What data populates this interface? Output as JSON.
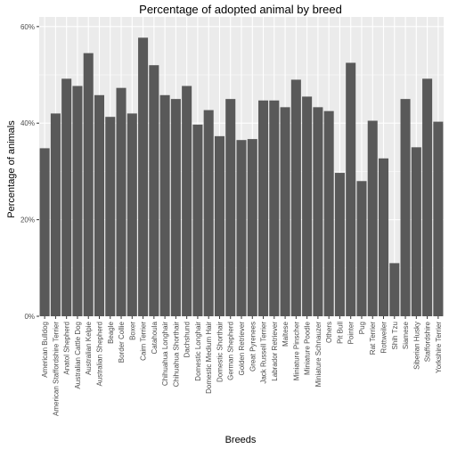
{
  "chart_data": {
    "type": "bar",
    "title": "Percentage of adopted animal by breed",
    "xlabel": "Breeds",
    "ylabel": "Percentage of animals",
    "ylim": [
      0,
      0.62
    ],
    "yticks": [
      0,
      0.2,
      0.4,
      0.6
    ],
    "ytick_labels": [
      "0%",
      "20%",
      "40%",
      "60%"
    ],
    "grid": true,
    "colors": {
      "panel": "#ebebeb",
      "bar": "#595959",
      "grid": "#ffffff"
    },
    "categories": [
      "American Bulldog",
      "American Staffordshire Terrier",
      "Anatol Shepherd",
      "Australian Cattle Dog",
      "Australian Kelpie",
      "Australian Shepherd",
      "Beagle",
      "Border Collie",
      "Boxer",
      "Cairn Terrier",
      "Catahoula",
      "Chihuahua Longhair",
      "Chihuahua Shorthair",
      "Dachshund",
      "Domestic Longhair",
      "Domestic Medium Hair",
      "Domestic Shorthair",
      "German Shepherd",
      "Golden Retriever",
      "Great Pyrenees",
      "Jack Russell Terrier",
      "Labrador Retriever",
      "Maltese",
      "Miniature Pinscher",
      "Miniature Poodle",
      "Miniature Schnauzer",
      "Others",
      "Pit Bull",
      "Pointer",
      "Pug",
      "Rat Terrier",
      "Rottweiler",
      "Shih Tzu",
      "Siamese",
      "Siberian Husky",
      "Staffordshire",
      "Yorkshire Terrier"
    ],
    "values": [
      0.348,
      0.42,
      0.492,
      0.477,
      0.545,
      0.458,
      0.413,
      0.473,
      0.42,
      0.577,
      0.52,
      0.458,
      0.45,
      0.477,
      0.397,
      0.427,
      0.373,
      0.45,
      0.365,
      0.367,
      0.447,
      0.447,
      0.433,
      0.49,
      0.455,
      0.433,
      0.425,
      0.297,
      0.525,
      0.28,
      0.405,
      0.327,
      0.11,
      0.45,
      0.35,
      0.492,
      0.403
    ]
  }
}
